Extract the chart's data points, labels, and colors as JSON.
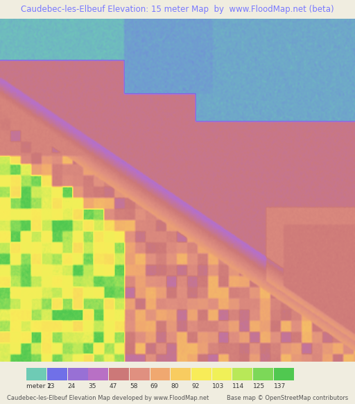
{
  "title": "Caudebec-les-Elbeuf Elevation: 15 meter Map  by  www.FloodMap.net (beta)",
  "title_color": "#7878ff",
  "background_color": "#f0ede0",
  "footer_left": "Caudebec-les-Elbeuf Elevation Map developed by www.FloodMap.net",
  "footer_right": "Base map © OpenStreetMap contributors",
  "fig_width": 5.12,
  "fig_height": 5.82,
  "legend_labels": [
    "meter 2",
    "13",
    "24",
    "35",
    "47",
    "58",
    "69",
    "80",
    "92",
    "103",
    "114",
    "125",
    "137"
  ],
  "colorbar_colors_hex": [
    "#6ecbb5",
    "#7070e8",
    "#9870d5",
    "#b870c5",
    "#cc7878",
    "#e09080",
    "#f0a870",
    "#f8cc60",
    "#f8ec58",
    "#f0f058",
    "#b8e858",
    "#7cd858",
    "#50c850"
  ],
  "title_fontsize": 8.5,
  "legend_fontsize": 6.5,
  "footer_fontsize": 6.0
}
